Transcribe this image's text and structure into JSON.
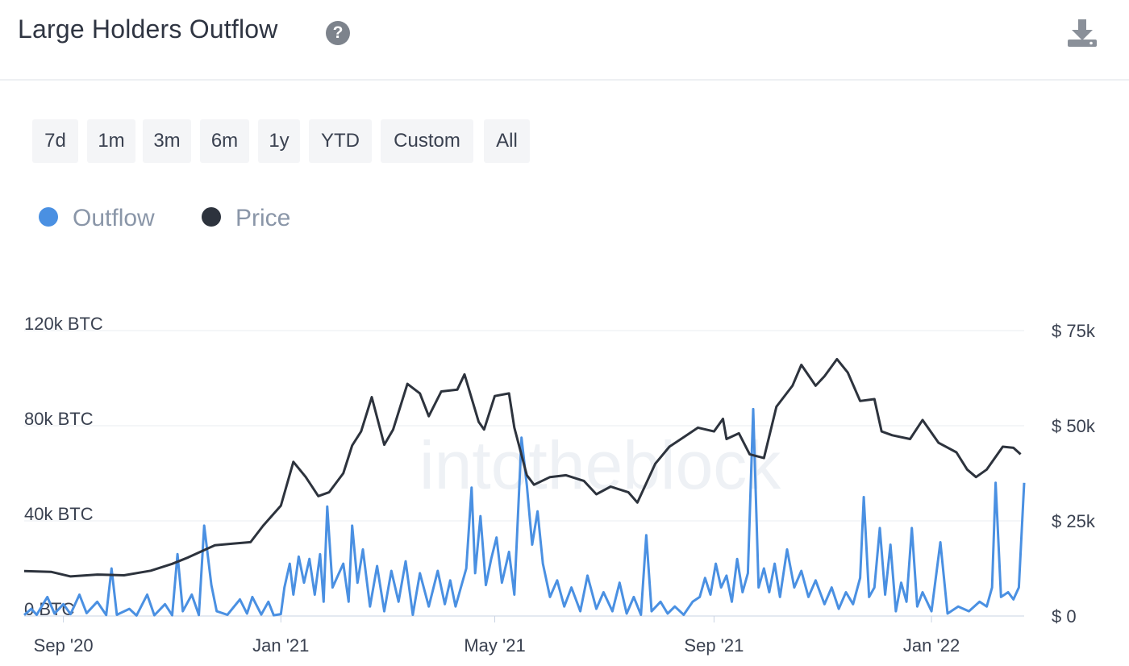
{
  "header": {
    "title": "Large Holders Outflow",
    "help_icon": "question-circle-icon",
    "download_icon": "download-icon"
  },
  "time_ranges": [
    {
      "label": "7d"
    },
    {
      "label": "1m"
    },
    {
      "label": "3m"
    },
    {
      "label": "6m"
    },
    {
      "label": "1y"
    },
    {
      "label": "YTD"
    },
    {
      "label": "Custom"
    },
    {
      "label": "All"
    }
  ],
  "legend": [
    {
      "label": "Outflow",
      "color": "#4a90e2"
    },
    {
      "label": "Price",
      "color": "#2d333d"
    }
  ],
  "watermark": "intotheblock",
  "chart_data": {
    "type": "line",
    "grid": true,
    "legend_position": "top-left",
    "x_ticks": [
      "Sep '20",
      "Jan '21",
      "May '21",
      "Sep '21",
      "Jan '22"
    ],
    "x_tick_dates": [
      "2020-09-01",
      "2021-01-01",
      "2021-05-01",
      "2021-09-01",
      "2022-01-01"
    ],
    "x_range": [
      "2020-08-10",
      "2022-02-22"
    ],
    "left_axis": {
      "ticks": [
        "0 BTC",
        "40k BTC",
        "80k BTC",
        "120k BTC"
      ],
      "values": [
        0,
        40000,
        80000,
        120000
      ],
      "range": [
        0,
        120000
      ]
    },
    "right_axis": {
      "ticks": [
        "$ 0",
        "$ 25k",
        "$ 50k",
        "$ 75k"
      ],
      "values": [
        0,
        25000,
        50000,
        75000
      ],
      "range": [
        0,
        75000
      ]
    },
    "series": [
      {
        "name": "Price",
        "axis": "right",
        "color": "#2d333d",
        "points": [
          [
            "2020-08-10",
            11800
          ],
          [
            "2020-08-25",
            11600
          ],
          [
            "2020-09-05",
            10400
          ],
          [
            "2020-09-20",
            10900
          ],
          [
            "2020-10-05",
            10700
          ],
          [
            "2020-10-20",
            11900
          ],
          [
            "2020-11-01",
            13700
          ],
          [
            "2020-11-10",
            15400
          ],
          [
            "2020-11-25",
            18600
          ],
          [
            "2020-12-05",
            19000
          ],
          [
            "2020-12-15",
            19400
          ],
          [
            "2020-12-22",
            23700
          ],
          [
            "2021-01-01",
            29000
          ],
          [
            "2021-01-08",
            40500
          ],
          [
            "2021-01-15",
            36500
          ],
          [
            "2021-01-22",
            31500
          ],
          [
            "2021-01-28",
            32500
          ],
          [
            "2021-02-05",
            37500
          ],
          [
            "2021-02-10",
            44800
          ],
          [
            "2021-02-15",
            48500
          ],
          [
            "2021-02-21",
            57500
          ],
          [
            "2021-02-28",
            45000
          ],
          [
            "2021-03-05",
            49000
          ],
          [
            "2021-03-13",
            61000
          ],
          [
            "2021-03-20",
            58500
          ],
          [
            "2021-03-25",
            52500
          ],
          [
            "2021-04-01",
            59000
          ],
          [
            "2021-04-10",
            59500
          ],
          [
            "2021-04-14",
            63500
          ],
          [
            "2021-04-22",
            51000
          ],
          [
            "2021-04-25",
            49000
          ],
          [
            "2021-05-01",
            57800
          ],
          [
            "2021-05-09",
            58500
          ],
          [
            "2021-05-12",
            49500
          ],
          [
            "2021-05-19",
            37000
          ],
          [
            "2021-05-23",
            34500
          ],
          [
            "2021-06-01",
            36500
          ],
          [
            "2021-06-10",
            37000
          ],
          [
            "2021-06-20",
            35500
          ],
          [
            "2021-06-27",
            32000
          ],
          [
            "2021-07-05",
            34000
          ],
          [
            "2021-07-15",
            32500
          ],
          [
            "2021-07-20",
            29800
          ],
          [
            "2021-07-30",
            40000
          ],
          [
            "2021-08-07",
            44500
          ],
          [
            "2021-08-15",
            47000
          ],
          [
            "2021-08-23",
            49500
          ],
          [
            "2021-09-01",
            48500
          ],
          [
            "2021-09-06",
            51800
          ],
          [
            "2021-09-08",
            46500
          ],
          [
            "2021-09-15",
            48000
          ],
          [
            "2021-09-21",
            42500
          ],
          [
            "2021-09-29",
            41500
          ],
          [
            "2021-10-06",
            55000
          ],
          [
            "2021-10-15",
            60500
          ],
          [
            "2021-10-20",
            66000
          ],
          [
            "2021-10-28",
            60500
          ],
          [
            "2021-11-02",
            63000
          ],
          [
            "2021-11-09",
            67500
          ],
          [
            "2021-11-15",
            64000
          ],
          [
            "2021-11-22",
            56500
          ],
          [
            "2021-11-30",
            57000
          ],
          [
            "2021-12-04",
            48500
          ],
          [
            "2021-12-10",
            47500
          ],
          [
            "2021-12-20",
            46500
          ],
          [
            "2021-12-27",
            51500
          ],
          [
            "2022-01-05",
            45500
          ],
          [
            "2022-01-15",
            43000
          ],
          [
            "2022-01-21",
            38500
          ],
          [
            "2022-01-26",
            36500
          ],
          [
            "2022-02-01",
            38500
          ],
          [
            "2022-02-10",
            44500
          ],
          [
            "2022-02-16",
            44200
          ],
          [
            "2022-02-20",
            42500
          ]
        ]
      },
      {
        "name": "Outflow",
        "axis": "left",
        "color": "#4a90e2",
        "points": [
          [
            "2020-08-10",
            400
          ],
          [
            "2020-08-14",
            3000
          ],
          [
            "2020-08-17",
            500
          ],
          [
            "2020-08-23",
            8000
          ],
          [
            "2020-08-27",
            1000
          ],
          [
            "2020-09-01",
            5000
          ],
          [
            "2020-09-05",
            800
          ],
          [
            "2020-09-10",
            9000
          ],
          [
            "2020-09-14",
            1200
          ],
          [
            "2020-09-20",
            6000
          ],
          [
            "2020-09-25",
            400
          ],
          [
            "2020-09-28",
            20000
          ],
          [
            "2020-10-01",
            500
          ],
          [
            "2020-10-08",
            3000
          ],
          [
            "2020-10-12",
            200
          ],
          [
            "2020-10-18",
            9000
          ],
          [
            "2020-10-22",
            300
          ],
          [
            "2020-10-28",
            5000
          ],
          [
            "2020-11-01",
            300
          ],
          [
            "2020-11-04",
            26000
          ],
          [
            "2020-11-07",
            2000
          ],
          [
            "2020-11-12",
            9000
          ],
          [
            "2020-11-16",
            400
          ],
          [
            "2020-11-19",
            38000
          ],
          [
            "2020-11-23",
            13000
          ],
          [
            "2020-11-26",
            2000
          ],
          [
            "2020-12-02",
            500
          ],
          [
            "2020-12-09",
            7000
          ],
          [
            "2020-12-13",
            1000
          ],
          [
            "2020-12-16",
            8000
          ],
          [
            "2020-12-21",
            600
          ],
          [
            "2020-12-25",
            6000
          ],
          [
            "2020-12-28",
            300
          ],
          [
            "2021-01-01",
            800
          ],
          [
            "2021-01-03",
            12000
          ],
          [
            "2021-01-06",
            22000
          ],
          [
            "2021-01-08",
            9000
          ],
          [
            "2021-01-11",
            25000
          ],
          [
            "2021-01-14",
            14000
          ],
          [
            "2021-01-17",
            24000
          ],
          [
            "2021-01-20",
            9000
          ],
          [
            "2021-01-23",
            26000
          ],
          [
            "2021-01-25",
            6000
          ],
          [
            "2021-01-27",
            46000
          ],
          [
            "2021-01-30",
            12000
          ],
          [
            "2021-02-02",
            17000
          ],
          [
            "2021-02-05",
            22000
          ],
          [
            "2021-02-08",
            6000
          ],
          [
            "2021-02-10",
            38000
          ],
          [
            "2021-02-13",
            14000
          ],
          [
            "2021-02-16",
            28000
          ],
          [
            "2021-02-20",
            4000
          ],
          [
            "2021-02-24",
            21000
          ],
          [
            "2021-02-28",
            2000
          ],
          [
            "2021-03-04",
            19000
          ],
          [
            "2021-03-08",
            6000
          ],
          [
            "2021-03-12",
            23000
          ],
          [
            "2021-03-16",
            500
          ],
          [
            "2021-03-20",
            18000
          ],
          [
            "2021-03-25",
            4000
          ],
          [
            "2021-03-30",
            19000
          ],
          [
            "2021-04-03",
            5000
          ],
          [
            "2021-04-06",
            15000
          ],
          [
            "2021-04-09",
            4000
          ],
          [
            "2021-04-12",
            12000
          ],
          [
            "2021-04-15",
            20000
          ],
          [
            "2021-04-18",
            54000
          ],
          [
            "2021-04-20",
            18000
          ],
          [
            "2021-04-23",
            42000
          ],
          [
            "2021-04-26",
            13000
          ],
          [
            "2021-04-29",
            24000
          ],
          [
            "2021-05-02",
            33000
          ],
          [
            "2021-05-05",
            14000
          ],
          [
            "2021-05-09",
            27000
          ],
          [
            "2021-05-12",
            9000
          ],
          [
            "2021-05-16",
            75000
          ],
          [
            "2021-05-19",
            55000
          ],
          [
            "2021-05-22",
            30000
          ],
          [
            "2021-05-25",
            44000
          ],
          [
            "2021-05-28",
            22000
          ],
          [
            "2021-06-01",
            8000
          ],
          [
            "2021-06-05",
            15000
          ],
          [
            "2021-06-09",
            4000
          ],
          [
            "2021-06-13",
            12000
          ],
          [
            "2021-06-18",
            2000
          ],
          [
            "2021-06-22",
            17000
          ],
          [
            "2021-06-27",
            3000
          ],
          [
            "2021-07-01",
            10000
          ],
          [
            "2021-07-06",
            2000
          ],
          [
            "2021-07-10",
            14000
          ],
          [
            "2021-07-14",
            1000
          ],
          [
            "2021-07-18",
            8000
          ],
          [
            "2021-07-22",
            500
          ],
          [
            "2021-07-25",
            34000
          ],
          [
            "2021-07-28",
            2000
          ],
          [
            "2021-08-02",
            6000
          ],
          [
            "2021-08-06",
            1000
          ],
          [
            "2021-08-10",
            4000
          ],
          [
            "2021-08-15",
            500
          ],
          [
            "2021-08-20",
            6000
          ],
          [
            "2021-08-24",
            8000
          ],
          [
            "2021-08-27",
            16000
          ],
          [
            "2021-08-30",
            9000
          ],
          [
            "2021-09-02",
            22000
          ],
          [
            "2021-09-05",
            12000
          ],
          [
            "2021-09-08",
            17000
          ],
          [
            "2021-09-11",
            6000
          ],
          [
            "2021-09-14",
            24000
          ],
          [
            "2021-09-17",
            10000
          ],
          [
            "2021-09-20",
            18000
          ],
          [
            "2021-09-23",
            87000
          ],
          [
            "2021-09-26",
            12000
          ],
          [
            "2021-09-29",
            20000
          ],
          [
            "2021-10-02",
            10000
          ],
          [
            "2021-10-05",
            22000
          ],
          [
            "2021-10-08",
            8000
          ],
          [
            "2021-10-12",
            28000
          ],
          [
            "2021-10-16",
            12000
          ],
          [
            "2021-10-20",
            19000
          ],
          [
            "2021-10-24",
            8000
          ],
          [
            "2021-10-28",
            15000
          ],
          [
            "2021-11-02",
            5000
          ],
          [
            "2021-11-06",
            12000
          ],
          [
            "2021-11-10",
            3000
          ],
          [
            "2021-11-14",
            10000
          ],
          [
            "2021-11-18",
            5000
          ],
          [
            "2021-11-22",
            16000
          ],
          [
            "2021-11-24",
            50000
          ],
          [
            "2021-11-27",
            8000
          ],
          [
            "2021-11-30",
            12000
          ],
          [
            "2021-12-03",
            37000
          ],
          [
            "2021-12-06",
            9000
          ],
          [
            "2021-12-09",
            30000
          ],
          [
            "2021-12-12",
            2000
          ],
          [
            "2021-12-15",
            14000
          ],
          [
            "2021-12-18",
            6000
          ],
          [
            "2021-12-21",
            37000
          ],
          [
            "2021-12-24",
            4000
          ],
          [
            "2021-12-27",
            10000
          ],
          [
            "2022-01-01",
            2000
          ],
          [
            "2022-01-06",
            31000
          ],
          [
            "2022-01-10",
            1000
          ],
          [
            "2022-01-16",
            4000
          ],
          [
            "2022-01-22",
            2000
          ],
          [
            "2022-01-28",
            6000
          ],
          [
            "2022-02-01",
            4000
          ],
          [
            "2022-02-04",
            12000
          ],
          [
            "2022-02-06",
            56000
          ],
          [
            "2022-02-09",
            8000
          ],
          [
            "2022-02-13",
            10000
          ],
          [
            "2022-02-16",
            7000
          ],
          [
            "2022-02-19",
            12000
          ],
          [
            "2022-02-22",
            56000
          ]
        ]
      }
    ]
  }
}
